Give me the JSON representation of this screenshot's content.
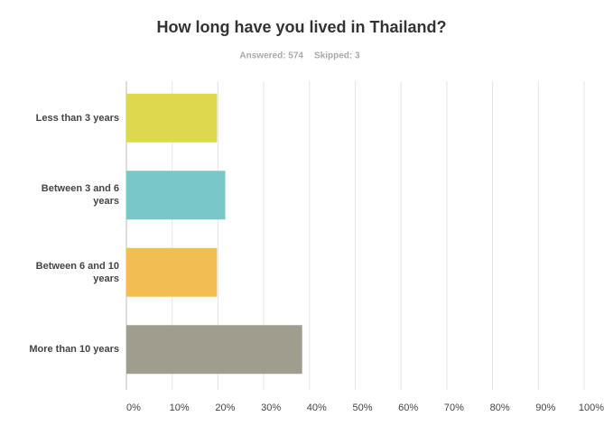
{
  "chart_data": {
    "type": "bar",
    "orientation": "horizontal",
    "title": "How long have you lived in Thailand?",
    "subtitle": [
      "Answered: 574",
      "Skipped: 3"
    ],
    "categories": [
      "Less than 3 years",
      "Between 3 and 6 years",
      "Between 6 and 10 years",
      "More than 10 years"
    ],
    "values": [
      19.8,
      21.6,
      19.8,
      38.4
    ],
    "colors": [
      "#dcd94f",
      "#7ac7c7",
      "#f2bd53",
      "#a09d8f"
    ],
    "xlim": [
      0,
      100
    ],
    "xticks": [
      {
        "value": 0,
        "label": "0%"
      },
      {
        "value": 10,
        "label": "10%"
      },
      {
        "value": 20,
        "label": "20%"
      },
      {
        "value": 30,
        "label": "30%"
      },
      {
        "value": 40,
        "label": "40%"
      },
      {
        "value": 50,
        "label": "50%"
      },
      {
        "value": 60,
        "label": "60%"
      },
      {
        "value": 70,
        "label": "70%"
      },
      {
        "value": 80,
        "label": "80%"
      },
      {
        "value": 90,
        "label": "90%"
      },
      {
        "value": 100,
        "label": "100%"
      }
    ],
    "grid": true
  }
}
